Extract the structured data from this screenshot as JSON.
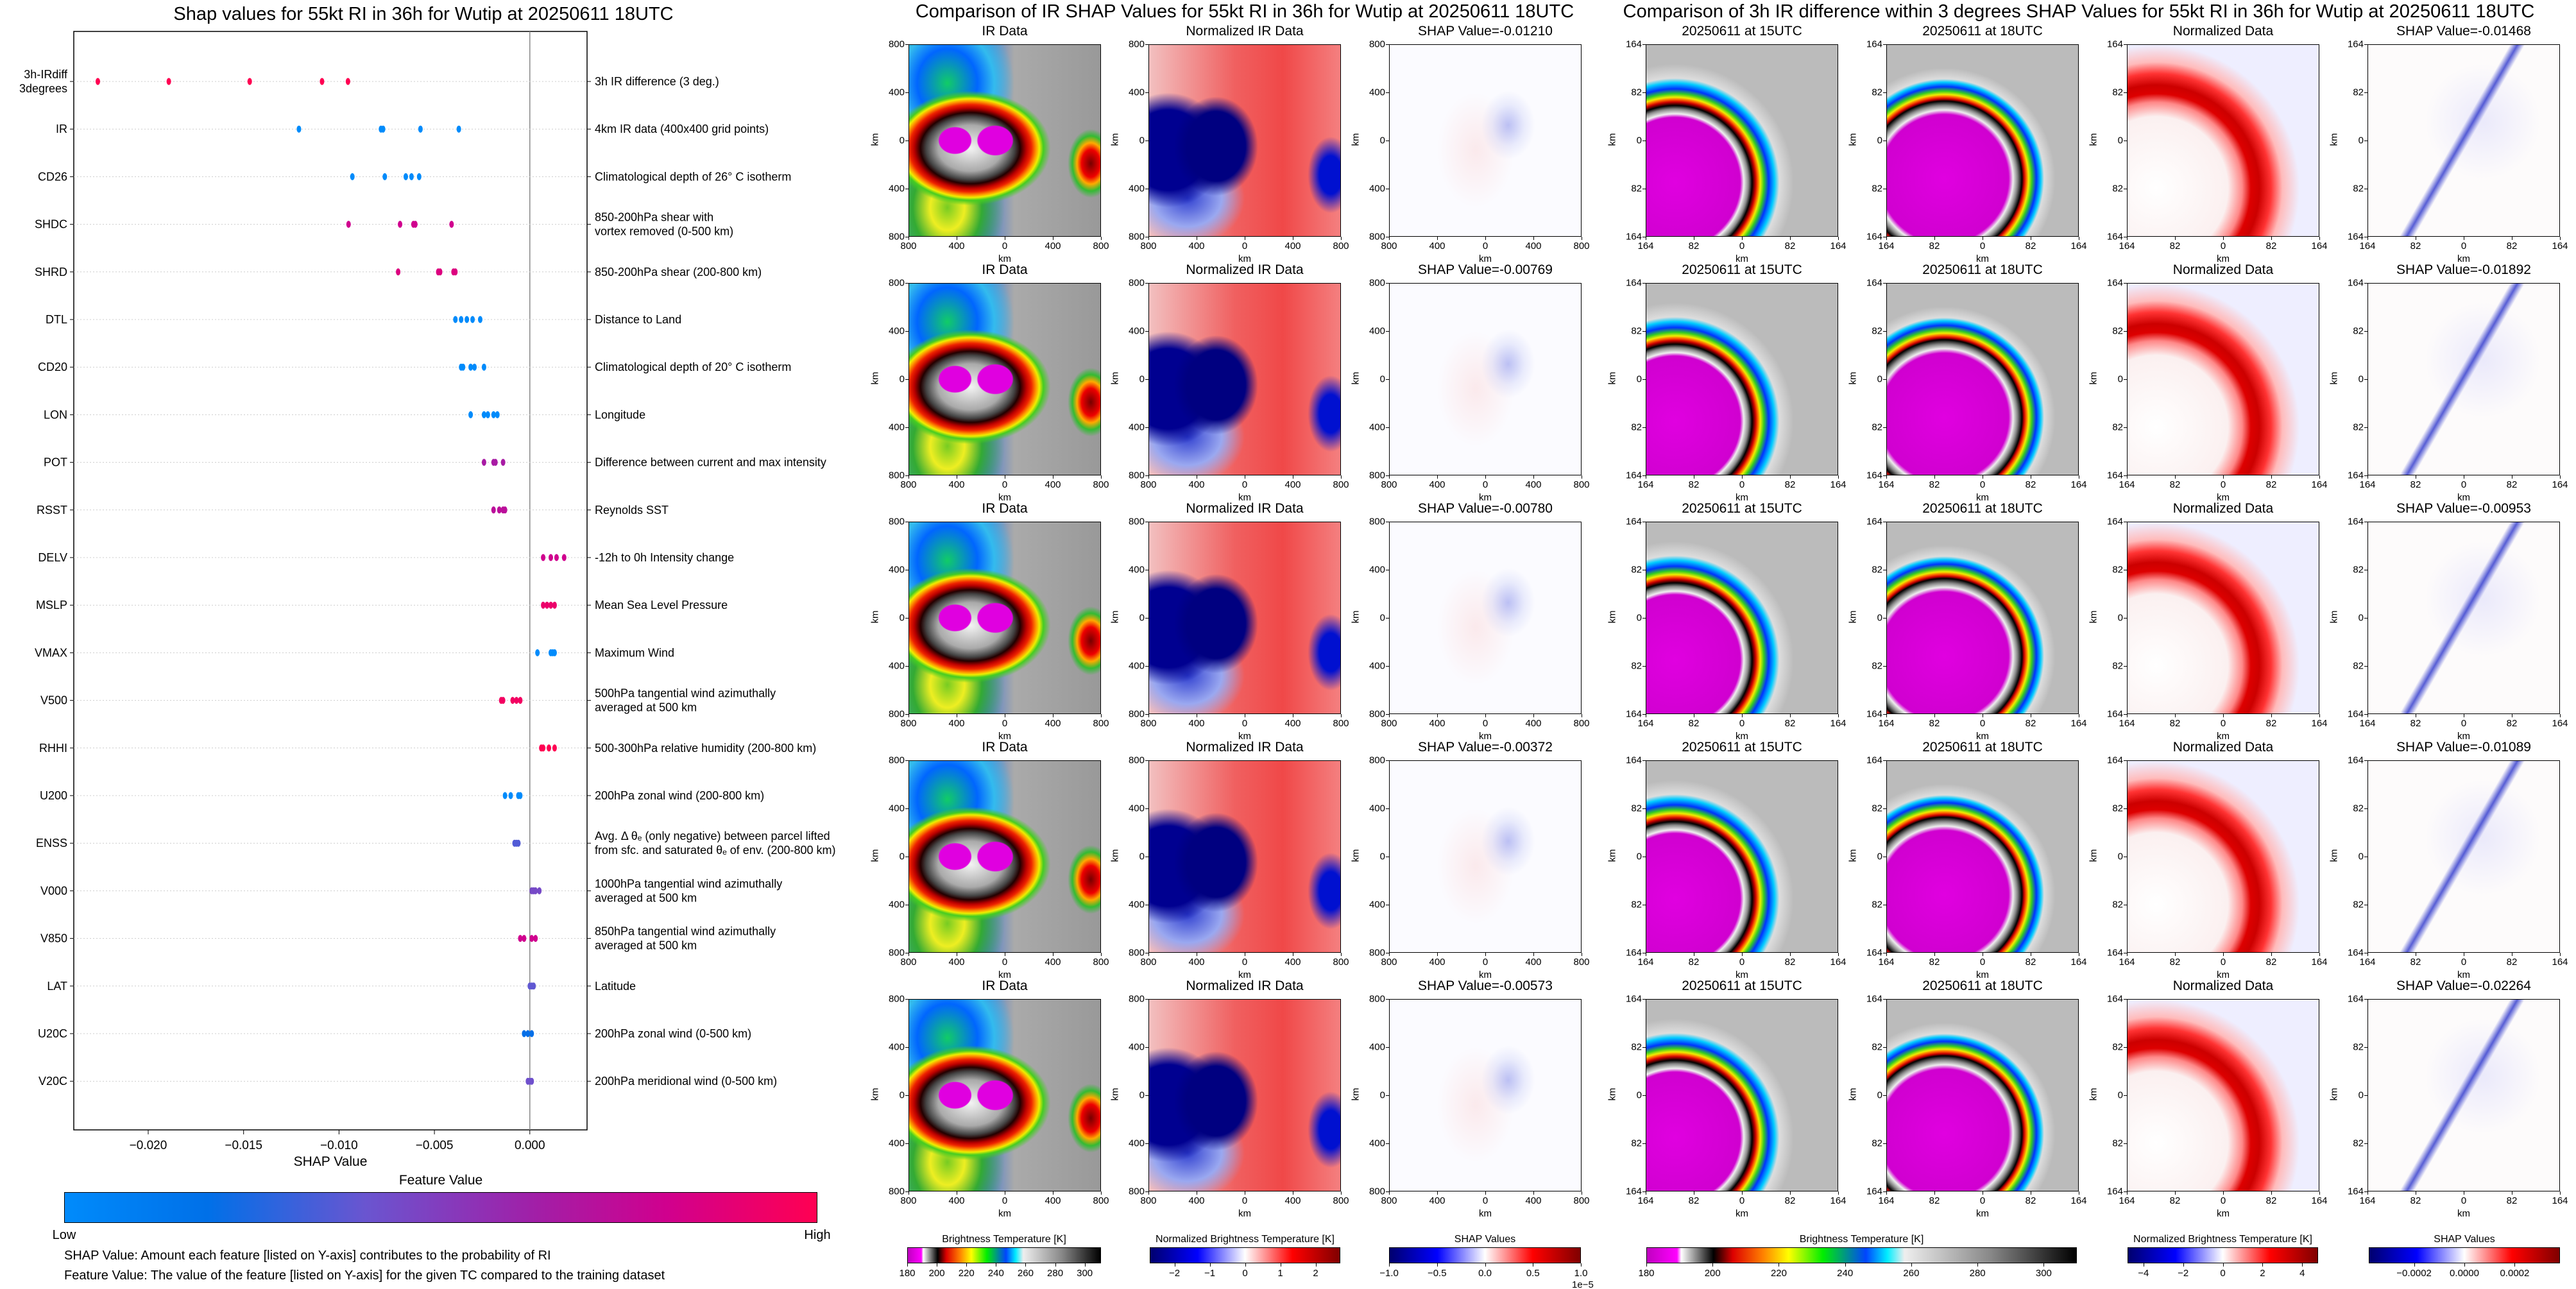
{
  "chart_data": {
    "type": "scatter",
    "title": "Shap values for 55kt RI in 36h for Wutip at 20250611 18UTC",
    "xlabel": "SHAP Value",
    "xlim": [
      -0.0239,
      0.003
    ],
    "xticks": [
      -0.02,
      -0.015,
      -0.01,
      -0.005,
      0.0
    ],
    "xtick_labels": [
      "−0.020",
      "−0.015",
      "−0.010",
      "−0.005",
      "0.000"
    ],
    "zero_line": 0.0,
    "feature_colormap": {
      "low_color": "#008bfb",
      "high_color": "#ff0052"
    },
    "features": [
      {
        "code": [
          "3h-IRdiff",
          "3degrees"
        ],
        "desc": [
          "3h IR difference (3 deg.)"
        ],
        "points": [
          [
            -0.02264,
            1
          ],
          [
            -0.01892,
            1
          ],
          [
            -0.01468,
            1
          ],
          [
            -0.01089,
            1
          ],
          [
            -0.00953,
            1
          ]
        ]
      },
      {
        "code": [
          "IR"
        ],
        "desc": [
          "4km IR data (400x400 grid points)"
        ],
        "points": [
          [
            -0.0121,
            0
          ],
          [
            -0.0078,
            0
          ],
          [
            -0.00769,
            0
          ],
          [
            -0.00573,
            0
          ],
          [
            -0.00372,
            0
          ]
        ]
      },
      {
        "code": [
          "CD26"
        ],
        "desc": [
          "Climatological depth of 26° C isotherm"
        ],
        "points": [
          [
            -0.0093,
            0
          ],
          [
            -0.0076,
            0
          ],
          [
            -0.0065,
            0
          ],
          [
            -0.0062,
            0
          ],
          [
            -0.0058,
            0
          ]
        ]
      },
      {
        "code": [
          "SHDC"
        ],
        "desc": [
          "850-200hPa shear with",
          "vortex removed (0-500 km)"
        ],
        "points": [
          [
            -0.0095,
            0.8
          ],
          [
            -0.0068,
            0.8
          ],
          [
            -0.0061,
            0.8
          ],
          [
            -0.006,
            0.8
          ],
          [
            -0.0041,
            0.8
          ]
        ]
      },
      {
        "code": [
          "SHRD"
        ],
        "desc": [
          "850-200hPa shear (200-800 km)"
        ],
        "points": [
          [
            -0.0069,
            0.85
          ],
          [
            -0.0048,
            0.85
          ],
          [
            -0.0047,
            0.85
          ],
          [
            -0.004,
            0.85
          ],
          [
            -0.0039,
            0.85
          ]
        ]
      },
      {
        "code": [
          "DTL"
        ],
        "desc": [
          "Distance to Land"
        ],
        "points": [
          [
            -0.0039,
            0
          ],
          [
            -0.0036,
            0
          ],
          [
            -0.0033,
            0
          ],
          [
            -0.003,
            0
          ],
          [
            -0.0026,
            0
          ]
        ]
      },
      {
        "code": [
          "CD20"
        ],
        "desc": [
          "Climatological depth of 20° C isotherm"
        ],
        "points": [
          [
            -0.0036,
            0
          ],
          [
            -0.0035,
            0
          ],
          [
            -0.0031,
            0
          ],
          [
            -0.0029,
            0
          ],
          [
            -0.0024,
            0
          ]
        ]
      },
      {
        "code": [
          "LON"
        ],
        "desc": [
          "Longitude"
        ],
        "points": [
          [
            -0.0031,
            0
          ],
          [
            -0.0024,
            0
          ],
          [
            -0.0022,
            0
          ],
          [
            -0.0019,
            0
          ],
          [
            -0.0017,
            0
          ]
        ]
      },
      {
        "code": [
          "POT"
        ],
        "desc": [
          "Difference between current and max intensity"
        ],
        "points": [
          [
            -0.0024,
            0.65
          ],
          [
            -0.0019,
            0.65
          ],
          [
            -0.0018,
            0.65
          ],
          [
            -0.0014,
            0.65
          ]
        ]
      },
      {
        "code": [
          "RSST"
        ],
        "desc": [
          "Reynolds SST"
        ],
        "points": [
          [
            -0.0019,
            0.72
          ],
          [
            -0.0016,
            0.72
          ],
          [
            -0.0014,
            0.72
          ],
          [
            -0.0013,
            0.72
          ]
        ]
      },
      {
        "code": [
          "DELV"
        ],
        "desc": [
          "-12h to 0h Intensity change"
        ],
        "points": [
          [
            0.0007,
            0.8
          ],
          [
            0.0011,
            0.8
          ],
          [
            0.0014,
            0.8
          ],
          [
            0.0018,
            0.8
          ]
        ]
      },
      {
        "code": [
          "MSLP"
        ],
        "desc": [
          "Mean Sea Level Pressure"
        ],
        "points": [
          [
            0.0007,
            0.92
          ],
          [
            0.0009,
            0.92
          ],
          [
            0.0011,
            0.92
          ],
          [
            0.0013,
            0.92
          ]
        ]
      },
      {
        "code": [
          "VMAX"
        ],
        "desc": [
          "Maximum Wind"
        ],
        "points": [
          [
            0.0004,
            0
          ],
          [
            0.0011,
            0
          ],
          [
            0.0012,
            0
          ],
          [
            0.0013,
            0
          ]
        ]
      },
      {
        "code": [
          "V500"
        ],
        "desc": [
          "500hPa tangential wind azimuthally",
          "averaged at 500 km"
        ],
        "points": [
          [
            -0.0015,
            0.95
          ],
          [
            -0.0014,
            0.95
          ],
          [
            -0.0009,
            0.95
          ],
          [
            -0.0007,
            0.95
          ],
          [
            -0.0005,
            0.95
          ]
        ]
      },
      {
        "code": [
          "RHHI"
        ],
        "desc": [
          "500-300hPa relative humidity (200-800 km)"
        ],
        "points": [
          [
            0.0006,
            1
          ],
          [
            0.0007,
            1
          ],
          [
            0.001,
            1
          ],
          [
            0.0013,
            1
          ]
        ]
      },
      {
        "code": [
          "U200"
        ],
        "desc": [
          "200hPa zonal wind (200-800 km)"
        ],
        "points": [
          [
            -0.0013,
            0
          ],
          [
            -0.001,
            0
          ],
          [
            -0.0006,
            0
          ],
          [
            -0.0005,
            0
          ]
        ]
      },
      {
        "code": [
          "ENSS"
        ],
        "desc": [
          "Avg. Δ θₑ (only negative) between parcel lifted",
          "from sfc. and saturated θₑ of env. (200-800 km)"
        ],
        "points": [
          [
            -0.0008,
            0.35
          ],
          [
            -0.0007,
            0.35
          ],
          [
            -0.0006,
            0.35
          ]
        ]
      },
      {
        "code": [
          "V000"
        ],
        "desc": [
          "1000hPa tangential wind azimuthally",
          "averaged at 500 km"
        ],
        "points": [
          [
            0.0001,
            0.45
          ],
          [
            0.0002,
            0.45
          ],
          [
            0.0003,
            0.45
          ],
          [
            0.0005,
            0.45
          ]
        ]
      },
      {
        "code": [
          "V850"
        ],
        "desc": [
          "850hPa tangential wind azimuthally",
          "averaged at 500 km"
        ],
        "points": [
          [
            -0.0005,
            0.8
          ],
          [
            -0.0003,
            0.8
          ],
          [
            0.0001,
            0.8
          ],
          [
            0.0003,
            0.8
          ]
        ]
      },
      {
        "code": [
          "LAT"
        ],
        "desc": [
          "Latitude"
        ],
        "points": [
          [
            0.0,
            0.38
          ],
          [
            0.0001,
            0.38
          ],
          [
            0.0002,
            0.38
          ]
        ]
      },
      {
        "code": [
          "U20C"
        ],
        "desc": [
          "200hPa zonal wind (0-500 km)"
        ],
        "points": [
          [
            -0.0003,
            0.2
          ],
          [
            -0.0001,
            0.2
          ],
          [
            0.0001,
            0.2
          ]
        ]
      },
      {
        "code": [
          "V20C"
        ],
        "desc": [
          "200hPa meridional wind (0-500 km)"
        ],
        "points": [
          [
            -0.0001,
            0.42
          ],
          [
            0.0,
            0.42
          ],
          [
            0.0001,
            0.42
          ]
        ]
      }
    ],
    "colorbar": {
      "title": "Feature Value",
      "low": "Low",
      "high": "High"
    },
    "notes": [
      "SHAP Value: Amount each feature [listed on Y-axis] contributes to the probability of RI",
      "Feature Value: The value of the feature [listed on Y-axis] for the given TC compared to the training dataset"
    ]
  },
  "ir_comparison": {
    "title": "Comparison of IR SHAP Values for 55kt RI in 36h for Wutip at 20250611 18UTC",
    "axis_label": "km",
    "tick_labels": [
      "800",
      "400",
      "0",
      "400",
      "800"
    ],
    "rows": [
      [
        "IR Data",
        "Normalized IR Data",
        "SHAP Value=-0.01210"
      ],
      [
        "IR Data",
        "Normalized IR Data",
        "SHAP Value=-0.00769"
      ],
      [
        "IR Data",
        "Normalized IR Data",
        "SHAP Value=-0.00780"
      ],
      [
        "IR Data",
        "Normalized IR Data",
        "SHAP Value=-0.00372"
      ],
      [
        "IR Data",
        "Normalized IR Data",
        "SHAP Value=-0.00573"
      ]
    ],
    "colorbars": [
      {
        "label": "Brightness Temperature [K]",
        "range": [
          180,
          311
        ],
        "ticks": [
          180,
          200,
          220,
          240,
          260,
          280,
          300
        ],
        "tick_labels": [
          "180",
          "200",
          "220",
          "240",
          "260",
          "280",
          "300"
        ]
      },
      {
        "label": "Normalized Brightness Temperature [K]",
        "range": [
          -2.7,
          2.7
        ],
        "ticks": [
          -2,
          -1,
          0,
          1,
          2
        ],
        "tick_labels": [
          "−2",
          "−1",
          "0",
          "1",
          "2"
        ]
      },
      {
        "label": "SHAP Values",
        "range": [
          -1,
          1
        ],
        "ticks": [
          -1,
          -0.5,
          0,
          0.5,
          1
        ],
        "tick_labels": [
          "−1.0",
          "−0.5",
          "0.0",
          "0.5",
          "1.0"
        ],
        "offset": "1e−5"
      }
    ]
  },
  "irdiff_comparison": {
    "title": "Comparison of 3h IR difference within 3 degrees SHAP Values for 55kt RI in 36h for Wutip at 20250611 18UTC",
    "axis_label": "km",
    "tick_labels": [
      "164",
      "82",
      "0",
      "82",
      "164"
    ],
    "rows": [
      [
        "20250611 at 15UTC",
        "20250611 at 18UTC",
        "Normalized Data",
        "SHAP Value=-0.01468"
      ],
      [
        "20250611 at 15UTC",
        "20250611 at 18UTC",
        "Normalized Data",
        "SHAP Value=-0.01892"
      ],
      [
        "20250611 at 15UTC",
        "20250611 at 18UTC",
        "Normalized Data",
        "SHAP Value=-0.00953"
      ],
      [
        "20250611 at 15UTC",
        "20250611 at 18UTC",
        "Normalized Data",
        "SHAP Value=-0.01089"
      ],
      [
        "20250611 at 15UTC",
        "20250611 at 18UTC",
        "Normalized Data",
        "SHAP Value=-0.02264"
      ]
    ],
    "colorbars": [
      {
        "label": "Brightness Temperature [K]",
        "range": [
          180,
          310
        ],
        "ticks": [
          180,
          200,
          220,
          240,
          260,
          280,
          300
        ],
        "tick_labels": [
          "180",
          "200",
          "220",
          "240",
          "260",
          "280",
          "300"
        ]
      },
      {
        "label": "Normalized Brightness Temperature [K]",
        "range": [
          -4.8,
          4.8
        ],
        "ticks": [
          -4,
          -2,
          0,
          2,
          4
        ],
        "tick_labels": [
          "−4",
          "−2",
          "0",
          "2",
          "4"
        ]
      },
      {
        "label": "SHAP Values",
        "range": [
          -0.00038,
          0.00038
        ],
        "ticks": [
          -0.0002,
          0,
          0.0002
        ],
        "tick_labels": [
          "−0.0002",
          "0.0000",
          "0.0002"
        ]
      }
    ]
  }
}
